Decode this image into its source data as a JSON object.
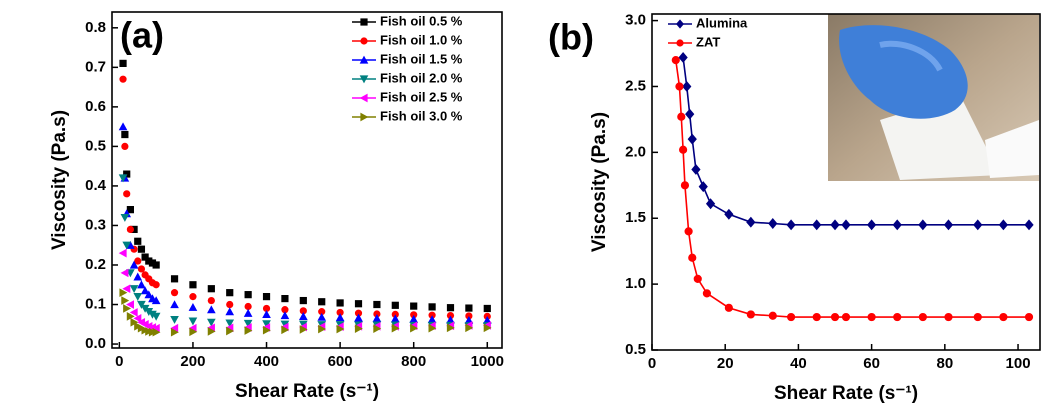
{
  "chart_data": [
    {
      "type": "scatter",
      "annotation": "(a)",
      "xlabel": "Shear Rate (s⁻¹)",
      "ylabel": "Viscosity (Pa.s)",
      "xlim": [
        -20,
        1040
      ],
      "xticks": [
        0,
        200,
        400,
        600,
        800,
        1000
      ],
      "ylim": [
        -0.01,
        0.84
      ],
      "yticks": [
        {
          "value": 0,
          "label": "0.0"
        },
        0.1,
        0.2,
        0.3,
        0.4,
        0.5,
        0.6,
        0.7,
        0.8
      ],
      "legend": "upper right",
      "connect": false,
      "x": [
        10,
        15,
        20,
        30,
        40,
        50,
        60,
        70,
        80,
        90,
        100,
        150,
        200,
        250,
        300,
        350,
        400,
        450,
        500,
        550,
        600,
        650,
        700,
        750,
        800,
        850,
        900,
        950,
        1000
      ],
      "series": [
        {
          "name": "Fish oil 0.5 %",
          "color": "#000000",
          "marker": "square",
          "values": [
            0.71,
            0.53,
            0.43,
            0.34,
            0.29,
            0.26,
            0.24,
            0.22,
            0.21,
            0.205,
            0.2,
            0.165,
            0.15,
            0.14,
            0.13,
            0.125,
            0.12,
            0.115,
            0.11,
            0.107,
            0.104,
            0.102,
            0.1,
            0.098,
            0.096,
            0.094,
            0.092,
            0.091,
            0.09
          ]
        },
        {
          "name": "Fish oil 1.0 %",
          "color": "#ff0000",
          "marker": "circle",
          "values": [
            0.67,
            0.5,
            0.38,
            0.29,
            0.24,
            0.21,
            0.19,
            0.175,
            0.165,
            0.155,
            0.15,
            0.13,
            0.12,
            0.11,
            0.1,
            0.095,
            0.09,
            0.087,
            0.084,
            0.082,
            0.08,
            0.078,
            0.076,
            0.075,
            0.074,
            0.073,
            0.072,
            0.071,
            0.07
          ]
        },
        {
          "name": "Fish oil 1.5 %",
          "color": "#0000ff",
          "marker": "triangle-up",
          "values": [
            0.55,
            0.42,
            0.33,
            0.25,
            0.2,
            0.17,
            0.15,
            0.135,
            0.125,
            0.115,
            0.11,
            0.1,
            0.093,
            0.087,
            0.082,
            0.078,
            0.075,
            0.072,
            0.07,
            0.068,
            0.067,
            0.066,
            0.065,
            0.064,
            0.063,
            0.062,
            0.061,
            0.06,
            0.06
          ]
        },
        {
          "name": "Fish oil 2.0 %",
          "color": "#008080",
          "marker": "triangle-down",
          "values": [
            0.42,
            0.32,
            0.25,
            0.18,
            0.14,
            0.12,
            0.1,
            0.09,
            0.082,
            0.075,
            0.07,
            0.062,
            0.058,
            0.055,
            0.053,
            0.052,
            0.051,
            0.05,
            0.05,
            0.049,
            0.049,
            0.048,
            0.048,
            0.048,
            0.047,
            0.047,
            0.047,
            0.046,
            0.046
          ]
        },
        {
          "name": "Fish oil 2.5 %",
          "color": "#ff00ff",
          "marker": "triangle-left",
          "values": [
            0.23,
            0.18,
            0.14,
            0.1,
            0.08,
            0.065,
            0.055,
            0.05,
            0.045,
            0.042,
            0.04,
            0.04,
            0.04,
            0.041,
            0.041,
            0.042,
            0.042,
            0.043,
            0.043,
            0.044,
            0.044,
            0.045,
            0.045,
            0.045,
            0.046,
            0.046,
            0.046,
            0.047,
            0.047
          ]
        },
        {
          "name": "Fish oil 3.0 %",
          "color": "#808000",
          "marker": "triangle-right",
          "values": [
            0.13,
            0.11,
            0.09,
            0.07,
            0.055,
            0.045,
            0.04,
            0.035,
            0.032,
            0.03,
            0.03,
            0.03,
            0.031,
            0.032,
            0.033,
            0.034,
            0.035,
            0.036,
            0.037,
            0.038,
            0.038,
            0.039,
            0.039,
            0.04,
            0.04,
            0.04,
            0.041,
            0.041,
            0.041
          ]
        }
      ]
    },
    {
      "type": "line",
      "annotation": "(b)",
      "xlabel": "Shear Rate (s⁻¹)",
      "ylabel": "Viscosity (Pa.s)",
      "xlim": [
        0,
        106
      ],
      "xticks": [
        0,
        20,
        40,
        60,
        80,
        100
      ],
      "ylim": [
        0.5,
        3.05
      ],
      "yticks": [
        0.5,
        {
          "value": 1,
          "label": "1.0"
        },
        1.5,
        {
          "value": 2,
          "label": "2.0"
        },
        2.5,
        {
          "value": 3,
          "label": "3.0"
        }
      ],
      "legend": "upper left",
      "connect": true,
      "series": [
        {
          "name": "Alumina",
          "color": "#000080",
          "marker": "diamond",
          "x": [
            8.5,
            9.5,
            10.3,
            11,
            12,
            14,
            16,
            21,
            27,
            33,
            38,
            45,
            50,
            53,
            60,
            67,
            74,
            81,
            89,
            96,
            103
          ],
          "values": [
            2.72,
            2.5,
            2.29,
            2.1,
            1.87,
            1.74,
            1.61,
            1.53,
            1.47,
            1.46,
            1.45,
            1.45,
            1.45,
            1.45,
            1.45,
            1.45,
            1.45,
            1.45,
            1.45,
            1.45,
            1.45
          ]
        },
        {
          "name": "ZAT",
          "color": "#ff0000",
          "marker": "circle",
          "x": [
            6.5,
            7.5,
            8,
            8.5,
            9,
            10,
            11,
            12.5,
            15,
            21,
            27,
            33,
            38,
            45,
            50,
            53,
            60,
            67,
            74,
            81,
            89,
            96,
            103
          ],
          "values": [
            2.7,
            2.5,
            2.27,
            2.02,
            1.75,
            1.4,
            1.2,
            1.04,
            0.93,
            0.82,
            0.77,
            0.76,
            0.75,
            0.75,
            0.75,
            0.75,
            0.75,
            0.75,
            0.75,
            0.75,
            0.75,
            0.75,
            0.75
          ]
        }
      ]
    }
  ]
}
